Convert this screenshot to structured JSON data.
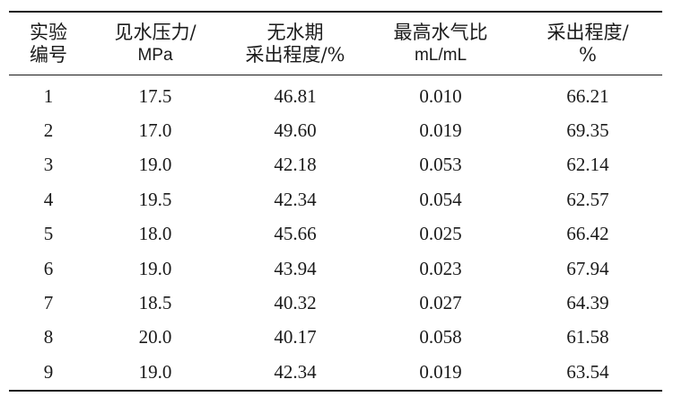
{
  "table": {
    "headers": [
      {
        "lines": [
          "实验",
          "编号"
        ]
      },
      {
        "lines": [
          "见水压力/",
          "MPa"
        ]
      },
      {
        "lines": [
          "无水期",
          "采出程度/%"
        ]
      },
      {
        "lines": [
          "最高水气比",
          "mL/mL"
        ]
      },
      {
        "lines": [
          "采出程度/",
          "%"
        ]
      }
    ],
    "rows": [
      [
        "1",
        "17.5",
        "46.81",
        "0.010",
        "66.21"
      ],
      [
        "2",
        "17.0",
        "49.60",
        "0.019",
        "69.35"
      ],
      [
        "3",
        "19.0",
        "42.18",
        "0.053",
        "62.14"
      ],
      [
        "4",
        "19.5",
        "42.34",
        "0.054",
        "62.57"
      ],
      [
        "5",
        "18.0",
        "45.66",
        "0.025",
        "66.42"
      ],
      [
        "6",
        "19.0",
        "43.94",
        "0.023",
        "67.94"
      ],
      [
        "7",
        "18.5",
        "40.32",
        "0.027",
        "64.39"
      ],
      [
        "8",
        "20.0",
        "40.17",
        "0.058",
        "61.58"
      ],
      [
        "9",
        "19.0",
        "42.34",
        "0.019",
        "63.54"
      ]
    ]
  }
}
